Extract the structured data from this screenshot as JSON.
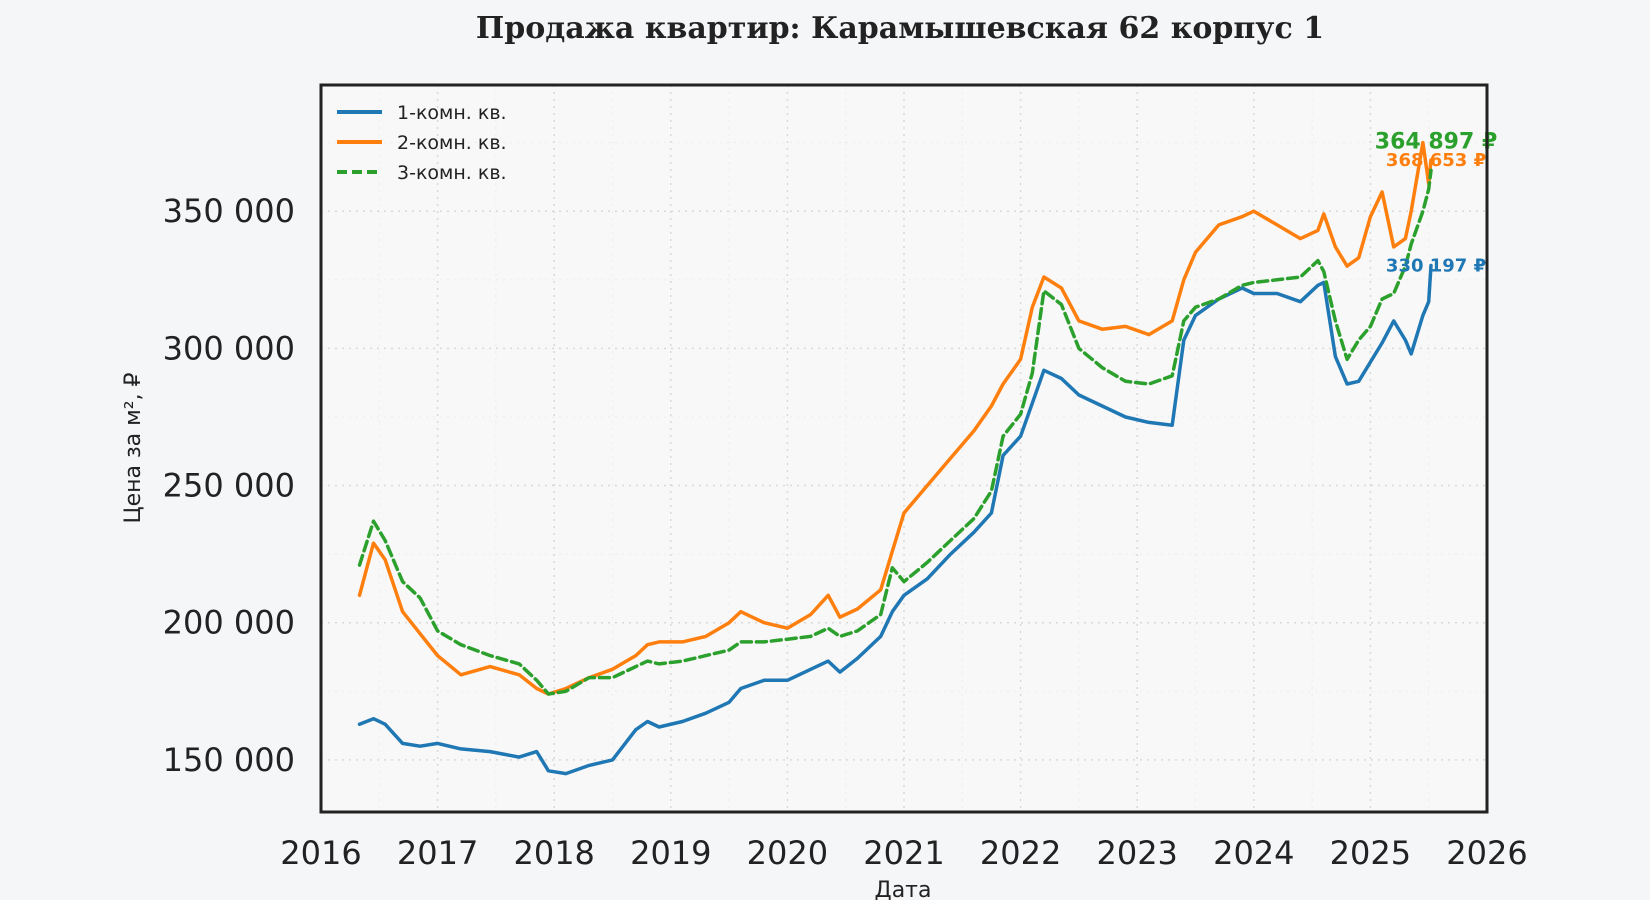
{
  "chart_data": {
    "type": "line",
    "title": "Продажа квартир: Карамышевская 62 корпус 1",
    "xlabel": "Дата",
    "ylabel": "Цена за м², ₽",
    "xlim": [
      2016.0,
      2026.0
    ],
    "ylim": [
      131000,
      396000
    ],
    "x_ticks": [
      2016,
      2017,
      2018,
      2019,
      2020,
      2021,
      2022,
      2023,
      2024,
      2025,
      2026
    ],
    "x_tick_labels": [
      "2016",
      "2017",
      "2018",
      "2019",
      "2020",
      "2021",
      "2022",
      "2023",
      "2024",
      "2025",
      "2026"
    ],
    "y_ticks": [
      150000,
      200000,
      250000,
      300000,
      350000
    ],
    "y_tick_labels": [
      "150 000",
      "200 000",
      "250 000",
      "300 000",
      "350 000"
    ],
    "grid": true,
    "legend_position": "top-left",
    "series": [
      {
        "name": "1-комн. кв.",
        "color": "#1f77b4",
        "dash": "solid",
        "end_label": "330 197 ₽",
        "end_label_size": "small",
        "x": [
          2016.33,
          2016.45,
          2016.55,
          2016.7,
          2016.85,
          2017.0,
          2017.2,
          2017.45,
          2017.7,
          2017.85,
          2017.95,
          2018.1,
          2018.3,
          2018.5,
          2018.7,
          2018.8,
          2018.9,
          2019.1,
          2019.3,
          2019.5,
          2019.6,
          2019.8,
          2020.0,
          2020.2,
          2020.35,
          2020.45,
          2020.6,
          2020.8,
          2020.9,
          2021.0,
          2021.2,
          2021.4,
          2021.6,
          2021.75,
          2021.85,
          2022.0,
          2022.1,
          2022.2,
          2022.35,
          2022.5,
          2022.7,
          2022.9,
          2023.1,
          2023.3,
          2023.4,
          2023.5,
          2023.7,
          2023.9,
          2024.0,
          2024.2,
          2024.4,
          2024.55,
          2024.6,
          2024.7,
          2024.8,
          2024.9,
          2025.0,
          2025.1,
          2025.2,
          2025.3,
          2025.35,
          2025.45,
          2025.5,
          2025.52
        ],
        "y": [
          163000,
          165000,
          163000,
          156000,
          155000,
          156000,
          154000,
          153000,
          151000,
          153000,
          146000,
          145000,
          148000,
          150000,
          161000,
          164000,
          162000,
          164000,
          167000,
          171000,
          176000,
          179000,
          179000,
          183000,
          186000,
          182000,
          187000,
          195000,
          204000,
          210000,
          216000,
          225000,
          233000,
          240000,
          261000,
          268000,
          280000,
          292000,
          289000,
          283000,
          279000,
          275000,
          273000,
          272000,
          303000,
          312000,
          318000,
          322000,
          320000,
          320000,
          317000,
          323000,
          324000,
          297000,
          287000,
          288000,
          295000,
          302000,
          310000,
          303000,
          298000,
          312000,
          317000,
          330197
        ]
      },
      {
        "name": "2-комн. кв.",
        "color": "#ff7f0e",
        "dash": "solid",
        "end_label": "368 653 ₽",
        "end_label_size": "small",
        "x": [
          2016.33,
          2016.45,
          2016.55,
          2016.7,
          2016.85,
          2017.0,
          2017.2,
          2017.45,
          2017.7,
          2017.85,
          2017.95,
          2018.1,
          2018.3,
          2018.5,
          2018.7,
          2018.8,
          2018.9,
          2019.1,
          2019.3,
          2019.5,
          2019.6,
          2019.8,
          2020.0,
          2020.2,
          2020.35,
          2020.45,
          2020.6,
          2020.8,
          2020.9,
          2021.0,
          2021.2,
          2021.4,
          2021.6,
          2021.75,
          2021.85,
          2022.0,
          2022.1,
          2022.2,
          2022.35,
          2022.5,
          2022.7,
          2022.9,
          2023.1,
          2023.3,
          2023.4,
          2023.5,
          2023.7,
          2023.9,
          2024.0,
          2024.2,
          2024.4,
          2024.55,
          2024.6,
          2024.7,
          2024.8,
          2024.9,
          2025.0,
          2025.1,
          2025.2,
          2025.3,
          2025.35,
          2025.45,
          2025.5,
          2025.52
        ],
        "y": [
          210000,
          229000,
          223000,
          204000,
          196000,
          188000,
          181000,
          184000,
          181000,
          176000,
          174000,
          176000,
          180000,
          183000,
          188000,
          192000,
          193000,
          193000,
          195000,
          200000,
          204000,
          200000,
          198000,
          203000,
          210000,
          202000,
          205000,
          212000,
          226000,
          240000,
          250000,
          260000,
          270000,
          279000,
          287000,
          296000,
          315000,
          326000,
          322000,
          310000,
          307000,
          308000,
          305000,
          310000,
          325000,
          335000,
          345000,
          348000,
          350000,
          345000,
          340000,
          343000,
          349000,
          337000,
          330000,
          333000,
          348000,
          357000,
          337000,
          340000,
          350000,
          375000,
          360000,
          368653
        ]
      },
      {
        "name": "3-комн. кв.",
        "color": "#2ca02c",
        "dash": "dashed",
        "end_label": "364 897 ₽",
        "end_label_size": "large",
        "x": [
          2016.33,
          2016.45,
          2016.55,
          2016.7,
          2016.85,
          2017.0,
          2017.2,
          2017.45,
          2017.7,
          2017.85,
          2017.95,
          2018.1,
          2018.3,
          2018.5,
          2018.7,
          2018.8,
          2018.9,
          2019.1,
          2019.3,
          2019.5,
          2019.6,
          2019.8,
          2020.0,
          2020.2,
          2020.35,
          2020.45,
          2020.6,
          2020.8,
          2020.9,
          2021.0,
          2021.2,
          2021.4,
          2021.6,
          2021.75,
          2021.85,
          2022.0,
          2022.1,
          2022.2,
          2022.35,
          2022.5,
          2022.7,
          2022.9,
          2023.1,
          2023.3,
          2023.4,
          2023.5,
          2023.7,
          2023.9,
          2024.0,
          2024.2,
          2024.4,
          2024.55,
          2024.6,
          2024.7,
          2024.8,
          2024.9,
          2025.0,
          2025.1,
          2025.2,
          2025.3,
          2025.35,
          2025.45,
          2025.5,
          2025.52
        ],
        "y": [
          221000,
          237000,
          230000,
          215000,
          209000,
          197000,
          192000,
          188000,
          185000,
          179000,
          174000,
          175000,
          180000,
          180000,
          184000,
          186000,
          185000,
          186000,
          188000,
          190000,
          193000,
          193000,
          194000,
          195000,
          198000,
          195000,
          197000,
          203000,
          220000,
          215000,
          222000,
          230000,
          238000,
          248000,
          268000,
          276000,
          291000,
          321000,
          316000,
          300000,
          293000,
          288000,
          287000,
          290000,
          310000,
          315000,
          318000,
          323000,
          324000,
          325000,
          326000,
          332000,
          328000,
          310000,
          296000,
          303000,
          308000,
          318000,
          320000,
          330000,
          338000,
          350000,
          358000,
          364897
        ]
      }
    ]
  }
}
